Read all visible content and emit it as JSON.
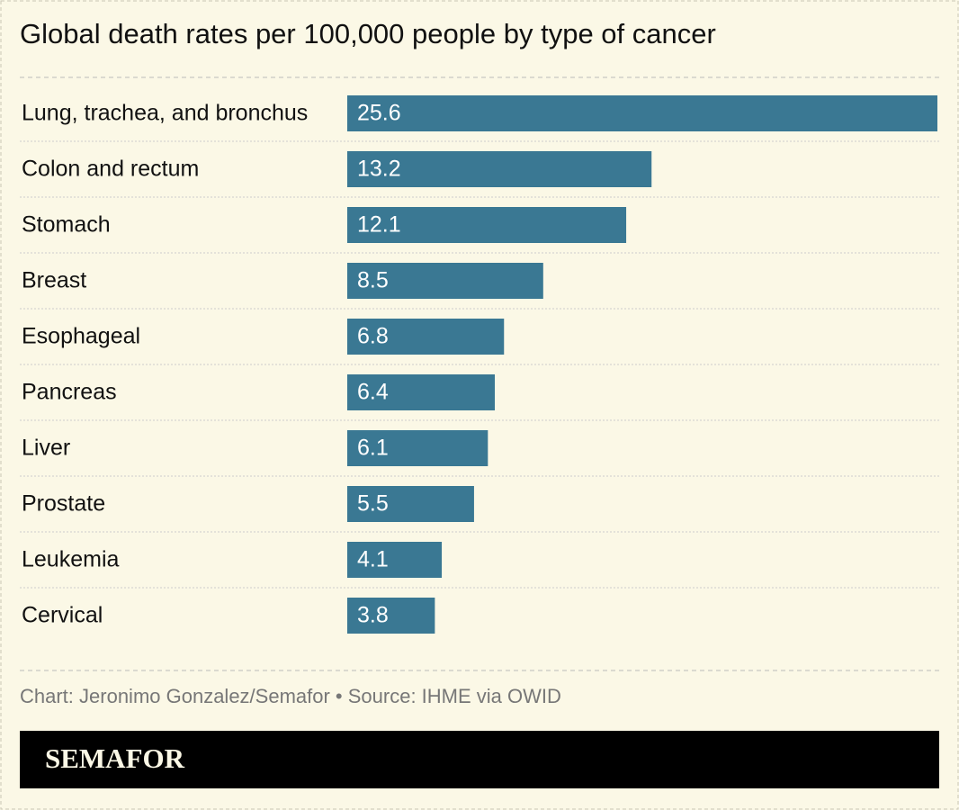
{
  "chart_data": {
    "type": "bar",
    "title": "Global death rates per 100,000 people by type of cancer",
    "categories": [
      "Lung, trachea, and bronchus",
      "Colon and rectum",
      "Stomach",
      "Breast",
      "Esophageal",
      "Pancreas",
      "Liver",
      "Prostate",
      "Leukemia",
      "Cervical"
    ],
    "values": [
      25.6,
      13.2,
      12.1,
      8.5,
      6.8,
      6.4,
      6.1,
      5.5,
      4.1,
      3.8
    ],
    "color": "#3a7893",
    "source": "Chart: Jeronimo Gonzalez/Semafor • Source: IHME via OWID",
    "logo": "SEMAFOR"
  }
}
